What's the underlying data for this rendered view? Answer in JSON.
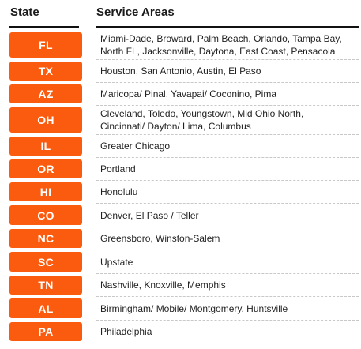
{
  "header": {
    "state_label": "State",
    "areas_label": "Service Areas"
  },
  "colors": {
    "badge": "#fb5b0e",
    "rule": "#111111",
    "divider": "#c8c8c8"
  },
  "rows": [
    {
      "state": "FL",
      "areas_line1": "Miami-Dade, Broward, Palm Beach, Orlando, Tampa Bay,",
      "areas_line2": "North FL, Jacksonville, Daytona, East Coast, Pensacola"
    },
    {
      "state": "TX",
      "areas_line1": "Houston, San Antonio, Austin, El Paso",
      "areas_line2": ""
    },
    {
      "state": "AZ",
      "areas_line1": "Maricopa/ Pinal, Yavapai/ Coconino, Pima",
      "areas_line2": ""
    },
    {
      "state": "OH",
      "areas_line1": "Cleveland, Toledo, Youngstown, Mid Ohio North,",
      "areas_line2": "Cincinnati/ Dayton/ Lima, Columbus"
    },
    {
      "state": "IL",
      "areas_line1": "Greater Chicago",
      "areas_line2": ""
    },
    {
      "state": "OR",
      "areas_line1": "Portland",
      "areas_line2": ""
    },
    {
      "state": "HI",
      "areas_line1": "Honolulu",
      "areas_line2": ""
    },
    {
      "state": "CO",
      "areas_line1": "Denver, El Paso / Teller",
      "areas_line2": ""
    },
    {
      "state": "NC",
      "areas_line1": "Greensboro, Winston-Salem",
      "areas_line2": ""
    },
    {
      "state": "SC",
      "areas_line1": "Upstate",
      "areas_line2": ""
    },
    {
      "state": "TN",
      "areas_line1": "Nashville, Knoxville, Memphis",
      "areas_line2": ""
    },
    {
      "state": "AL",
      "areas_line1": "Birmingham/ Mobile/ Montgomery, Huntsville",
      "areas_line2": ""
    },
    {
      "state": "PA",
      "areas_line1": "Philadelphia",
      "areas_line2": ""
    }
  ]
}
